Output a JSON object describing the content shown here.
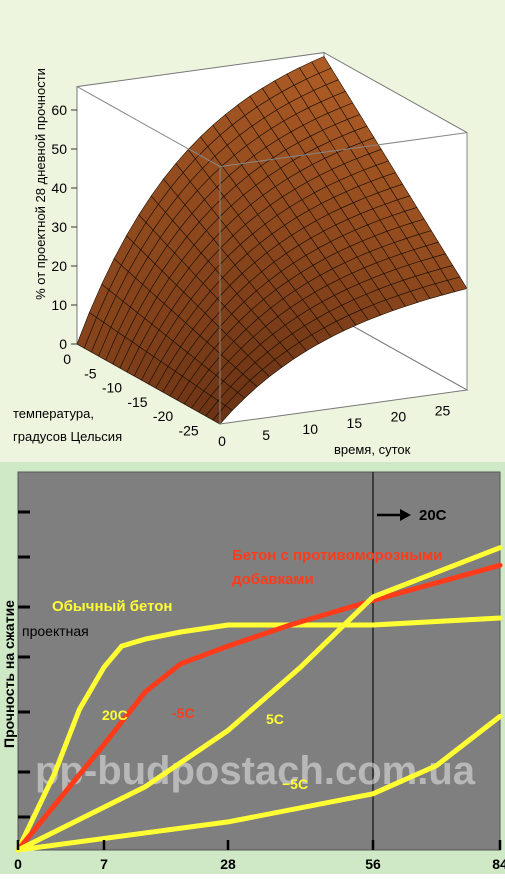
{
  "chart_data": [
    {
      "type": "surface",
      "zlabel": "% от проектной 28 дневной прочности",
      "xlabel": "температура, градусов Цельсия",
      "ylabel": "время, суток",
      "x_ticks": [
        "0",
        "-5",
        "-10",
        "-15",
        "-20",
        "-25"
      ],
      "y_ticks": [
        "0",
        "5",
        "10",
        "15",
        "20",
        "25"
      ],
      "z_ticks": [
        "0",
        "10",
        "20",
        "30",
        "40",
        "50",
        "60"
      ],
      "x_range": [
        0,
        -28
      ],
      "y_range": [
        0,
        28
      ],
      "z_range": [
        0,
        60
      ],
      "surface": {
        "z_max_at_warm": 65,
        "z_max_at_cold": 26
      },
      "grid": true,
      "surface_color": "#8a5a22"
    },
    {
      "type": "line",
      "ylabel": "Прочность на сжатие",
      "ylabel2": "проектная",
      "x_ticks": [
        "0",
        "7",
        "28",
        "56",
        "84"
      ],
      "x_values": [
        0,
        7,
        28,
        56,
        84
      ],
      "xlim": [
        0,
        84
      ],
      "ylim": [
        0,
        100
      ],
      "legend": {
        "normal": "Обычный бетон",
        "antifreeze": "Бетон с противоморозными добавками",
        "arrow": "20С"
      },
      "watermark": "pp-budpostach.com.ua",
      "series": [
        {
          "name": "20С",
          "color": "#ffff33",
          "x": [
            0,
            3,
            5,
            7,
            10,
            14,
            20,
            28,
            40,
            56,
            70,
            84
          ],
          "y": [
            0,
            22,
            40,
            52,
            58,
            60,
            62,
            64,
            64,
            64,
            65,
            66
          ]
        },
        {
          "name": "-5С",
          "color": "#ff3b1a",
          "x": [
            0,
            7,
            14,
            20,
            28,
            40,
            56,
            70,
            84
          ],
          "y": [
            0,
            30,
            45,
            53,
            58,
            64,
            71,
            76,
            81
          ]
        },
        {
          "name": "5С",
          "color": "#ffff33",
          "x": [
            0,
            14,
            28,
            42,
            56,
            70,
            84
          ],
          "y": [
            0,
            18,
            34,
            52,
            72,
            79,
            86
          ]
        },
        {
          "name": "−5С",
          "color": "#ffff33",
          "x": [
            0,
            28,
            56,
            70,
            84
          ],
          "y": [
            0,
            8,
            16,
            24,
            38
          ]
        }
      ]
    }
  ]
}
